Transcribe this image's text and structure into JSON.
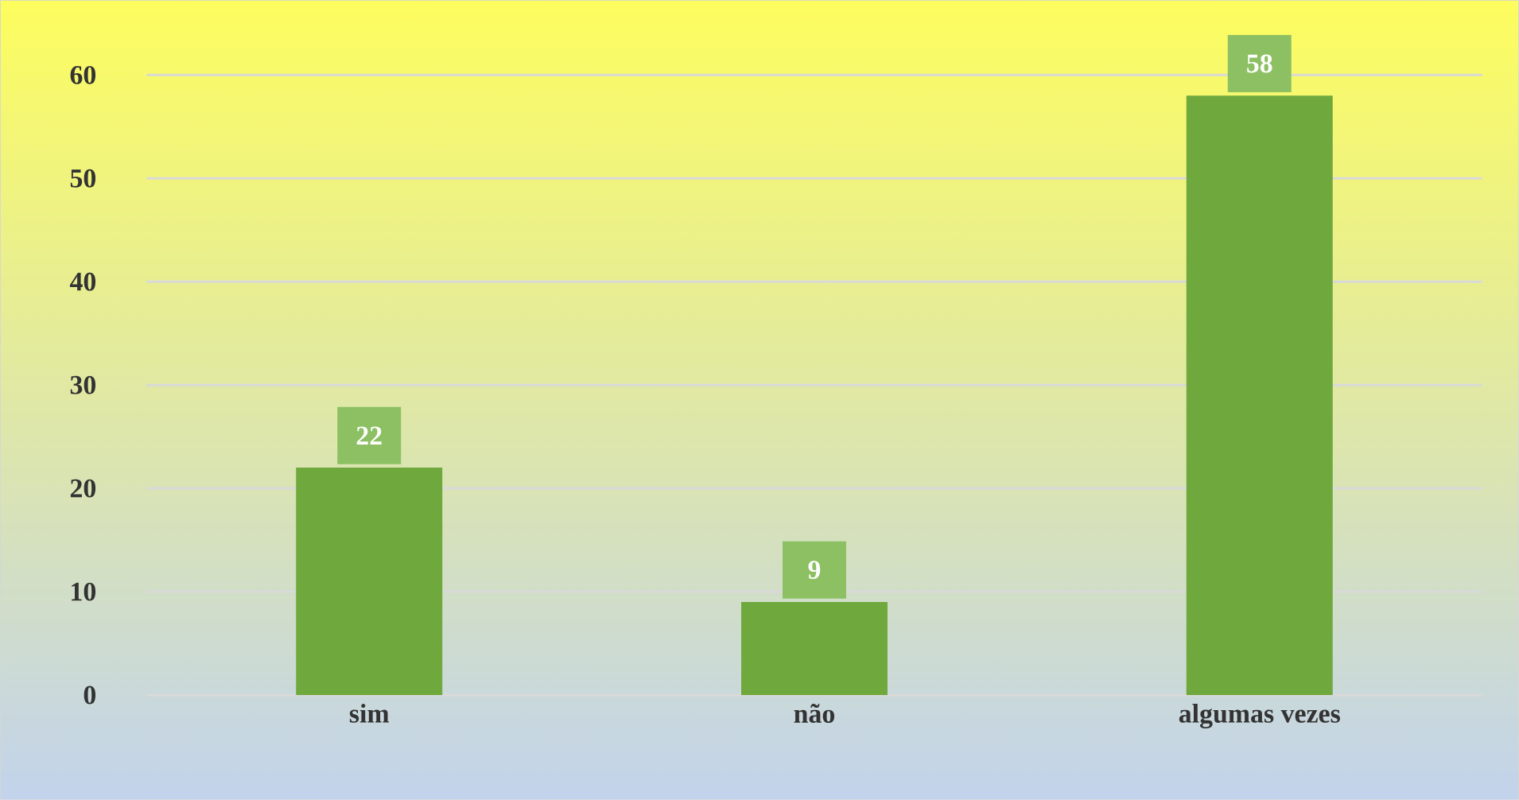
{
  "chart_data": {
    "type": "bar",
    "categories": [
      "sim",
      "não",
      "algumas vezes"
    ],
    "values": [
      22,
      9,
      58
    ],
    "color": "#6fa83c",
    "ylim": [
      0,
      60
    ],
    "yticks": [
      0,
      10,
      20,
      30,
      40,
      50,
      60
    ],
    "grid": "y",
    "data_labels": true
  }
}
